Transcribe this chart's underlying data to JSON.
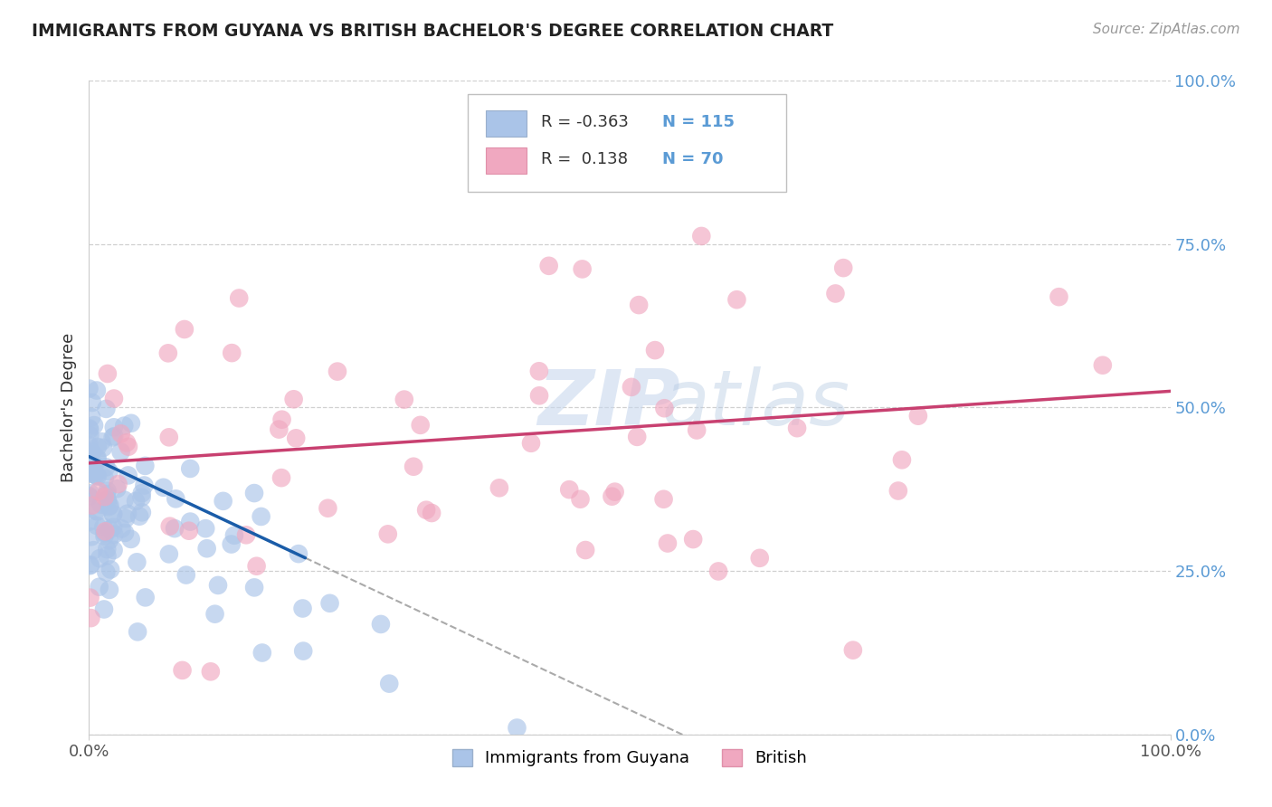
{
  "title": "IMMIGRANTS FROM GUYANA VS BRITISH BACHELOR'S DEGREE CORRELATION CHART",
  "source_text": "Source: ZipAtlas.com",
  "ylabel": "Bachelor's Degree",
  "right_yticks": [
    0.0,
    0.25,
    0.5,
    0.75,
    1.0
  ],
  "right_yticklabels": [
    "0.0%",
    "25.0%",
    "50.0%",
    "75.0%",
    "100.0%"
  ],
  "legend_entries": [
    {
      "label": "Immigrants from Guyana",
      "R": -0.363,
      "N": 115,
      "color": "#aac4e8",
      "line_color": "#1a5ca8"
    },
    {
      "label": "British",
      "R": 0.138,
      "N": 70,
      "color": "#f0a8c0",
      "line_color": "#c84070"
    }
  ],
  "watermark_zip": "ZIP",
  "watermark_atlas": "atlas",
  "background_color": "#ffffff",
  "grid_color": "#d0d0d0",
  "xmin": 0.0,
  "xmax": 1.0,
  "ymin": 0.0,
  "ymax": 1.0,
  "blue_trend_y0": 0.425,
  "blue_trend_y_at_solid_end": 0.27,
  "blue_trend_solid_end_x": 0.2,
  "blue_trend_dash_end_x": 0.55,
  "pink_trend_y0": 0.415,
  "pink_trend_y1": 0.525
}
